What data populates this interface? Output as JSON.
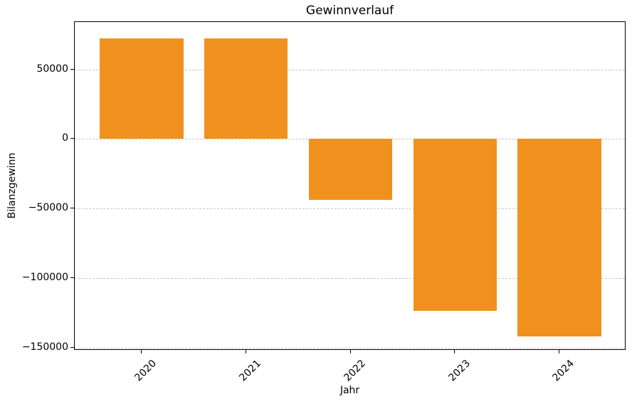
{
  "chart_data": {
    "type": "bar",
    "title": "Gewinnverlauf",
    "xlabel": "Jahr",
    "ylabel": "Bilanzgewinn",
    "categories": [
      "2020",
      "2021",
      "2022",
      "2023",
      "2024"
    ],
    "values": [
      72000,
      72500,
      -43500,
      -123400,
      -141600
    ],
    "bar_color": "#f0911d",
    "ylim": [
      -152000,
      84000
    ],
    "yticks": [
      50000,
      0,
      -50000,
      -100000,
      -150000
    ],
    "ytick_labels": [
      "50000",
      "0",
      "−50000",
      "−100000",
      "−150000"
    ],
    "x_tick_rotation_deg": 45,
    "grid": {
      "axis": "y",
      "style": "dashed",
      "color": "#c8c8c8"
    },
    "legend": "none",
    "background": "#ffffff",
    "axis_color": "#000000"
  }
}
